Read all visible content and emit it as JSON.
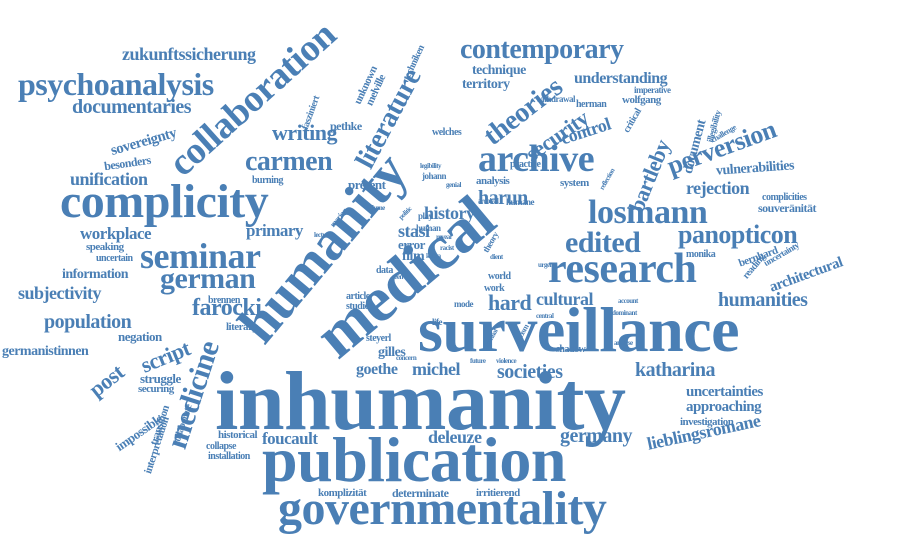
{
  "colors": {
    "word": "#4a7fb5",
    "background": "#ffffff"
  },
  "words": [
    {
      "id": "inhumanity",
      "text": "inhumanity"
    },
    {
      "id": "surveillance",
      "text": "surveillance"
    },
    {
      "id": "publication",
      "text": "publication"
    },
    {
      "id": "medical",
      "text": "medical"
    },
    {
      "id": "humanity",
      "text": "humanity"
    },
    {
      "id": "governmentality",
      "text": "governmentality"
    },
    {
      "id": "complicity",
      "text": "complicity"
    },
    {
      "id": "collaboration",
      "text": "collaboration"
    },
    {
      "id": "research",
      "text": "research"
    },
    {
      "id": "seminar",
      "text": "seminar"
    },
    {
      "id": "archive",
      "text": "archive"
    },
    {
      "id": "psychoanalysis",
      "text": "psychoanalysis"
    },
    {
      "id": "contemporary",
      "text": "contemporary"
    },
    {
      "id": "losmann",
      "text": "losmann"
    },
    {
      "id": "edited",
      "text": "edited"
    },
    {
      "id": "german",
      "text": "german"
    },
    {
      "id": "carmen",
      "text": "carmen"
    },
    {
      "id": "panopticon",
      "text": "panopticon"
    },
    {
      "id": "medicine",
      "text": "medicine"
    },
    {
      "id": "literature",
      "text": "literature"
    },
    {
      "id": "perversion",
      "text": "perversion"
    },
    {
      "id": "theories",
      "text": "theories"
    },
    {
      "id": "documentaries",
      "text": "documentaries"
    },
    {
      "id": "population",
      "text": "population"
    },
    {
      "id": "humanities",
      "text": "humanities"
    },
    {
      "id": "bartleby",
      "text": "bartleby"
    },
    {
      "id": "security",
      "text": "security"
    },
    {
      "id": "farocki",
      "text": "farocki"
    },
    {
      "id": "script",
      "text": "script"
    },
    {
      "id": "societies",
      "text": "societies"
    },
    {
      "id": "katharina",
      "text": "katharina"
    },
    {
      "id": "writing",
      "text": "writing"
    },
    {
      "id": "zukunftssicherung",
      "text": "zukunftssicherung"
    },
    {
      "id": "post",
      "text": "post"
    },
    {
      "id": "history",
      "text": "history"
    },
    {
      "id": "harun",
      "text": "harun"
    },
    {
      "id": "subjectivity",
      "text": "subjectivity"
    },
    {
      "id": "unification",
      "text": "unification"
    },
    {
      "id": "workplace",
      "text": "workplace"
    },
    {
      "id": "primary",
      "text": "primary"
    },
    {
      "id": "rejection",
      "text": "rejection"
    },
    {
      "id": "vulnerabilities",
      "text": "vulnerabilities"
    },
    {
      "id": "germany",
      "text": "germany"
    },
    {
      "id": "lieblingsromane",
      "text": "lieblingsromane"
    },
    {
      "id": "foucault",
      "text": "foucault"
    },
    {
      "id": "deleuze",
      "text": "deleuze"
    },
    {
      "id": "understanding",
      "text": "understanding"
    },
    {
      "id": "control",
      "text": "control"
    },
    {
      "id": "hard",
      "text": "hard"
    },
    {
      "id": "cultural",
      "text": "cultural"
    },
    {
      "id": "stasi",
      "text": "stasi"
    },
    {
      "id": "goethe",
      "text": "goethe"
    },
    {
      "id": "michel",
      "text": "michel"
    },
    {
      "id": "gilles",
      "text": "gilles"
    },
    {
      "id": "germanistinnen",
      "text": "germanistinnen"
    },
    {
      "id": "information",
      "text": "information"
    },
    {
      "id": "architectural",
      "text": "architectural"
    },
    {
      "id": "approaching",
      "text": "approaching"
    },
    {
      "id": "uncertainties",
      "text": "uncertainties"
    },
    {
      "id": "technique",
      "text": "technique"
    },
    {
      "id": "territory",
      "text": "territory"
    },
    {
      "id": "sovereignty",
      "text": "sovereignty"
    },
    {
      "id": "document",
      "text": "document"
    },
    {
      "id": "souveranitat",
      "text": "souveränität"
    },
    {
      "id": "error",
      "text": "error"
    },
    {
      "id": "film",
      "text": "film"
    },
    {
      "id": "present",
      "text": "present"
    },
    {
      "id": "impossible",
      "text": "impossible"
    },
    {
      "id": "struggle",
      "text": "struggle"
    },
    {
      "id": "negation",
      "text": "negation"
    },
    {
      "id": "determinate",
      "text": "determinate"
    },
    {
      "id": "komplizitat",
      "text": "komplizität"
    },
    {
      "id": "irritierend",
      "text": "irritierend"
    },
    {
      "id": "wolfgang",
      "text": "wolfgang"
    },
    {
      "id": "besonders",
      "text": "besonders"
    },
    {
      "id": "investigation",
      "text": "investigation"
    },
    {
      "id": "historical",
      "text": "historical"
    },
    {
      "id": "installation",
      "text": "installation"
    },
    {
      "id": "pethke",
      "text": "pethke"
    },
    {
      "id": "melville",
      "text": "melville"
    },
    {
      "id": "unknown",
      "text": "unknown"
    },
    {
      "id": "techniken",
      "text": "techniken"
    },
    {
      "id": "fasziniert",
      "text": "fasziniert"
    },
    {
      "id": "analysis",
      "text": "analysis"
    },
    {
      "id": "system",
      "text": "system"
    },
    {
      "id": "steyerl",
      "text": "steyerl"
    },
    {
      "id": "shadow",
      "text": "shadow"
    },
    {
      "id": "world",
      "text": "world"
    },
    {
      "id": "work",
      "text": "work"
    },
    {
      "id": "article",
      "text": "article"
    },
    {
      "id": "studies",
      "text": "studies"
    },
    {
      "id": "speaking",
      "text": "speaking"
    },
    {
      "id": "uncertain",
      "text": "uncertain"
    },
    {
      "id": "securing",
      "text": "securing"
    },
    {
      "id": "transition",
      "text": "transition"
    },
    {
      "id": "interpretation",
      "text": "interpretation"
    },
    {
      "id": "collaborate",
      "text": "collaborate"
    },
    {
      "id": "collapse",
      "text": "collapse"
    },
    {
      "id": "burning",
      "text": "burning"
    },
    {
      "id": "brennen",
      "text": "brennen"
    },
    {
      "id": "literary",
      "text": "literary"
    },
    {
      "id": "monika",
      "text": "monika"
    },
    {
      "id": "bernhard",
      "text": "bernhard"
    },
    {
      "id": "reading",
      "text": "reading"
    },
    {
      "id": "uncertainty",
      "text": "uncertainty"
    },
    {
      "id": "complicities",
      "text": "complicities"
    },
    {
      "id": "critical",
      "text": "critical"
    },
    {
      "id": "illegibility",
      "text": "illegibility"
    },
    {
      "id": "challenge",
      "text": "challenge"
    },
    {
      "id": "imperative",
      "text": "imperative"
    },
    {
      "id": "herman",
      "text": "herman"
    },
    {
      "id": "withdrawal",
      "text": "withdrawal"
    },
    {
      "id": "welches",
      "text": "welches"
    },
    {
      "id": "humane",
      "text": "humane"
    },
    {
      "id": "practice",
      "text": "practice"
    },
    {
      "id": "johann",
      "text": "johann"
    },
    {
      "id": "legibility",
      "text": "legibility"
    },
    {
      "id": "genial",
      "text": "genial"
    },
    {
      "id": "reflection",
      "text": "reflection"
    },
    {
      "id": "racist",
      "text": "racist"
    },
    {
      "id": "reveal",
      "text": "reveal"
    },
    {
      "id": "volume",
      "text": "volume"
    },
    {
      "id": "politic",
      "text": "politic"
    },
    {
      "id": "life",
      "text": "life"
    },
    {
      "id": "mode",
      "text": "mode"
    },
    {
      "id": "theory",
      "text": "theory"
    },
    {
      "id": "future",
      "text": "future"
    },
    {
      "id": "violence",
      "text": "violence"
    },
    {
      "id": "concern",
      "text": "concern"
    },
    {
      "id": "analyse",
      "text": "analyse"
    },
    {
      "id": "account",
      "text": "account"
    },
    {
      "id": "dominant",
      "text": "dominant"
    },
    {
      "id": "data",
      "text": "data"
    },
    {
      "id": "play",
      "text": "play"
    },
    {
      "id": "human",
      "text": "human"
    },
    {
      "id": "racism",
      "text": "racism"
    },
    {
      "id": "archival",
      "text": "archival"
    },
    {
      "id": "central",
      "text": "central"
    },
    {
      "id": "potential",
      "text": "potential"
    },
    {
      "id": "seen",
      "text": "seen"
    },
    {
      "id": "dient",
      "text": "dient"
    },
    {
      "id": "kafka",
      "text": "kafka"
    },
    {
      "id": "lecture",
      "text": "lecture"
    },
    {
      "id": "marion",
      "text": "marion"
    },
    {
      "id": "urgent",
      "text": "urgent"
    }
  ]
}
